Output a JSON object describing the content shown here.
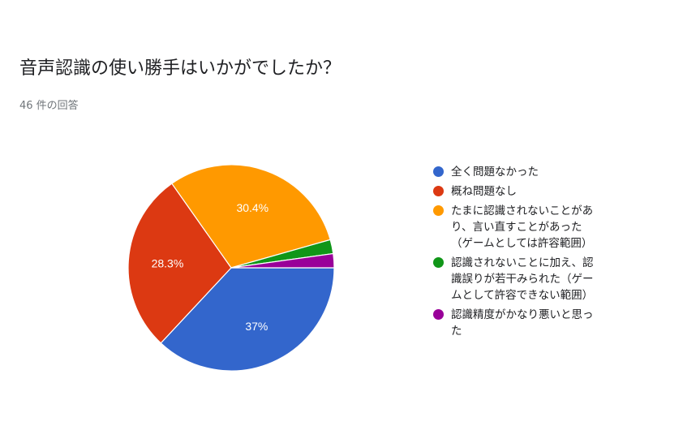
{
  "header": {
    "title": "音声認識の使い勝手はいかがでしたか？",
    "subtitle": "46 件の回答"
  },
  "chart_data": {
    "type": "pie",
    "categories": [
      "全く問題なかった",
      "概ね問題なし",
      "たまに認識されないことがあり、言い直すことがあった（ゲームとしては許容範囲）",
      "認識されないことに加え、認識誤りが若干みられた（ゲームとして許容できない範囲）",
      "認識精度がかなり悪いと思った"
    ],
    "values": [
      37,
      28.3,
      30.4,
      2.2,
      2.2
    ],
    "data_labels": [
      "37%",
      "28.3%",
      "30.4%",
      "",
      ""
    ],
    "colors": [
      "#3366cc",
      "#dc3912",
      "#ff9900",
      "#109618",
      "#990099"
    ],
    "start": "3 o'clock, clockwise",
    "legend_position": "right"
  },
  "legend": {
    "items": [
      {
        "color": "#3366cc",
        "lines": [
          "全く問題なかった"
        ]
      },
      {
        "color": "#dc3912",
        "lines": [
          "概ね問題なし"
        ]
      },
      {
        "color": "#ff9900",
        "lines": [
          "たまに認識されないことがあ",
          "り、言い直すことがあった",
          "（ゲームとしては許容範囲）"
        ]
      },
      {
        "color": "#109618",
        "lines": [
          "認識されないことに加え、認",
          "識誤りが若干みられた（ゲー",
          "ムとして許容できない範囲）"
        ]
      },
      {
        "color": "#990099",
        "lines": [
          "認識精度がかなり悪いと思っ",
          "た"
        ]
      }
    ]
  }
}
